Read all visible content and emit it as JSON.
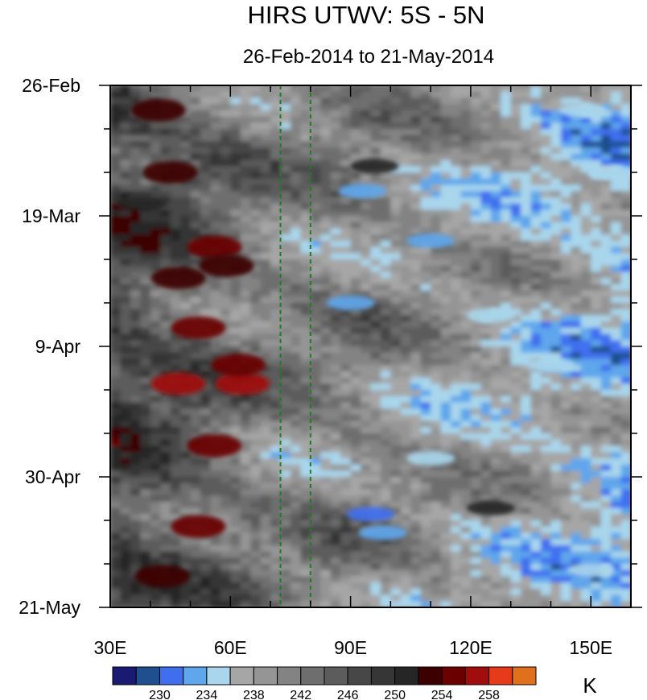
{
  "chart_data": {
    "type": "heatmap",
    "title": "HIRS UTWV: 5S - 5N",
    "subtitle": "26-Feb-2014 to 21-May-2014",
    "xlabel": "",
    "ylabel": "",
    "x_range": [
      30,
      160
    ],
    "x_ticks": [
      30,
      60,
      90,
      120,
      150
    ],
    "x_tick_labels": [
      "30E",
      "60E",
      "90E",
      "120E",
      "150E"
    ],
    "y_tick_labels": [
      "26-Feb",
      "19-Mar",
      "9-Apr",
      "30-Apr",
      "21-May"
    ],
    "y_tick_days": [
      0,
      21,
      42,
      63,
      84
    ],
    "y_range_days": [
      0,
      84
    ],
    "y_direction": "time increases downward",
    "reference_lines": [
      {
        "x": 72.5,
        "style": "dashed",
        "color": "#1e7d1e"
      },
      {
        "x": 80.0,
        "style": "dashed",
        "color": "#1e7d1e"
      }
    ],
    "colorbar": {
      "levels": [
        228,
        230,
        232,
        234,
        236,
        238,
        240,
        242,
        244,
        246,
        248,
        250,
        252,
        254,
        256,
        258,
        260
      ],
      "labels": [
        "230",
        "234",
        "238",
        "242",
        "246",
        "250",
        "254",
        "258"
      ],
      "label_values": [
        230,
        234,
        238,
        242,
        246,
        250,
        254,
        258
      ],
      "unit": "K",
      "colors": [
        "#1a1a73",
        "#1f4f8f",
        "#3f6fef",
        "#5fa6ec",
        "#a9d6ec",
        "#a6a6a6",
        "#959595",
        "#838383",
        "#6e6e6e",
        "#5c5c5c",
        "#474747",
        "#363636",
        "#262626",
        "#3d0000",
        "#6b0000",
        "#a10c0c",
        "#e63a1a",
        "#e0701c"
      ]
    },
    "features": [
      {
        "x": 47,
        "day": 31,
        "kind": "warm",
        "v": 252
      },
      {
        "x": 47,
        "day": 48,
        "kind": "warm",
        "v": 256
      },
      {
        "x": 52,
        "day": 39,
        "kind": "warm",
        "v": 254
      },
      {
        "x": 63,
        "day": 48,
        "kind": "warm",
        "v": 256
      },
      {
        "x": 62,
        "day": 45,
        "kind": "warm",
        "v": 255
      },
      {
        "x": 56,
        "day": 58,
        "kind": "warm",
        "v": 254
      },
      {
        "x": 56,
        "day": 26,
        "kind": "warm",
        "v": 255
      },
      {
        "x": 59,
        "day": 29,
        "kind": "warm",
        "v": 253
      },
      {
        "x": 42,
        "day": 4,
        "kind": "warm",
        "v": 253
      },
      {
        "x": 45,
        "day": 14,
        "kind": "warm",
        "v": 253
      },
      {
        "x": 52,
        "day": 71,
        "kind": "warm",
        "v": 254
      },
      {
        "x": 43,
        "day": 79,
        "kind": "warm",
        "v": 253
      },
      {
        "x": 38,
        "day": 19,
        "kind": "dark",
        "v": 250
      },
      {
        "x": 96,
        "day": 13,
        "kind": "dark",
        "v": 250
      },
      {
        "x": 125,
        "day": 68,
        "kind": "dark",
        "v": 250
      },
      {
        "x": 93,
        "day": 17,
        "kind": "cold",
        "v": 233
      },
      {
        "x": 90,
        "day": 35,
        "kind": "cold",
        "v": 232
      },
      {
        "x": 95,
        "day": 69,
        "kind": "cold",
        "v": 231
      },
      {
        "x": 98,
        "day": 72,
        "kind": "cold",
        "v": 232
      },
      {
        "x": 110,
        "day": 25,
        "kind": "cold",
        "v": 233
      },
      {
        "x": 125,
        "day": 37,
        "kind": "cold",
        "v": 234
      },
      {
        "x": 148,
        "day": 4,
        "kind": "cold",
        "v": 234
      },
      {
        "x": 155,
        "day": 14,
        "kind": "cold",
        "v": 234
      },
      {
        "x": 150,
        "day": 78,
        "kind": "cold",
        "v": 234
      },
      {
        "x": 140,
        "day": 45,
        "kind": "cold",
        "v": 234
      },
      {
        "x": 110,
        "day": 60,
        "kind": "cold",
        "v": 235
      }
    ]
  }
}
